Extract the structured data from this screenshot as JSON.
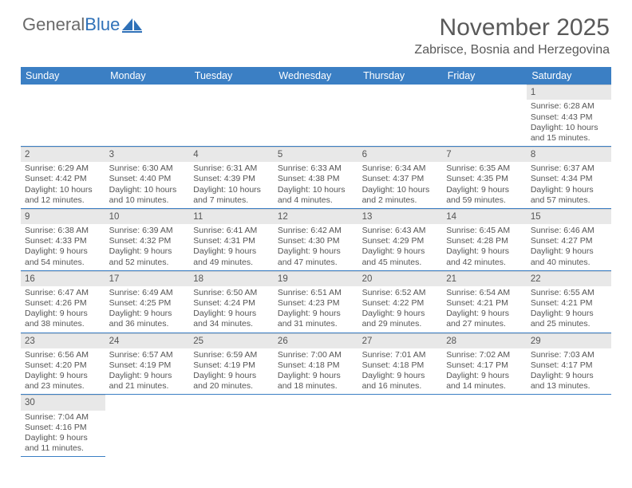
{
  "logo": {
    "part1": "General",
    "part2": "Blue"
  },
  "title": "November 2025",
  "location": "Zabrisce, Bosnia and Herzegovina",
  "colors": {
    "header_bg": "#3b7fc4",
    "header_text": "#ffffff",
    "daynum_bg": "#e8e8e8",
    "border": "#3b7fc4",
    "text": "#555555",
    "logo_gray": "#6a6a6a",
    "logo_blue": "#2f71b8"
  },
  "day_headers": [
    "Sunday",
    "Monday",
    "Tuesday",
    "Wednesday",
    "Thursday",
    "Friday",
    "Saturday"
  ],
  "weeks": [
    [
      null,
      null,
      null,
      null,
      null,
      null,
      {
        "n": "1",
        "sr": "6:28 AM",
        "ss": "4:43 PM",
        "dl": "10 hours and 15 minutes."
      }
    ],
    [
      {
        "n": "2",
        "sr": "6:29 AM",
        "ss": "4:42 PM",
        "dl": "10 hours and 12 minutes."
      },
      {
        "n": "3",
        "sr": "6:30 AM",
        "ss": "4:40 PM",
        "dl": "10 hours and 10 minutes."
      },
      {
        "n": "4",
        "sr": "6:31 AM",
        "ss": "4:39 PM",
        "dl": "10 hours and 7 minutes."
      },
      {
        "n": "5",
        "sr": "6:33 AM",
        "ss": "4:38 PM",
        "dl": "10 hours and 4 minutes."
      },
      {
        "n": "6",
        "sr": "6:34 AM",
        "ss": "4:37 PM",
        "dl": "10 hours and 2 minutes."
      },
      {
        "n": "7",
        "sr": "6:35 AM",
        "ss": "4:35 PM",
        "dl": "9 hours and 59 minutes."
      },
      {
        "n": "8",
        "sr": "6:37 AM",
        "ss": "4:34 PM",
        "dl": "9 hours and 57 minutes."
      }
    ],
    [
      {
        "n": "9",
        "sr": "6:38 AM",
        "ss": "4:33 PM",
        "dl": "9 hours and 54 minutes."
      },
      {
        "n": "10",
        "sr": "6:39 AM",
        "ss": "4:32 PM",
        "dl": "9 hours and 52 minutes."
      },
      {
        "n": "11",
        "sr": "6:41 AM",
        "ss": "4:31 PM",
        "dl": "9 hours and 49 minutes."
      },
      {
        "n": "12",
        "sr": "6:42 AM",
        "ss": "4:30 PM",
        "dl": "9 hours and 47 minutes."
      },
      {
        "n": "13",
        "sr": "6:43 AM",
        "ss": "4:29 PM",
        "dl": "9 hours and 45 minutes."
      },
      {
        "n": "14",
        "sr": "6:45 AM",
        "ss": "4:28 PM",
        "dl": "9 hours and 42 minutes."
      },
      {
        "n": "15",
        "sr": "6:46 AM",
        "ss": "4:27 PM",
        "dl": "9 hours and 40 minutes."
      }
    ],
    [
      {
        "n": "16",
        "sr": "6:47 AM",
        "ss": "4:26 PM",
        "dl": "9 hours and 38 minutes."
      },
      {
        "n": "17",
        "sr": "6:49 AM",
        "ss": "4:25 PM",
        "dl": "9 hours and 36 minutes."
      },
      {
        "n": "18",
        "sr": "6:50 AM",
        "ss": "4:24 PM",
        "dl": "9 hours and 34 minutes."
      },
      {
        "n": "19",
        "sr": "6:51 AM",
        "ss": "4:23 PM",
        "dl": "9 hours and 31 minutes."
      },
      {
        "n": "20",
        "sr": "6:52 AM",
        "ss": "4:22 PM",
        "dl": "9 hours and 29 minutes."
      },
      {
        "n": "21",
        "sr": "6:54 AM",
        "ss": "4:21 PM",
        "dl": "9 hours and 27 minutes."
      },
      {
        "n": "22",
        "sr": "6:55 AM",
        "ss": "4:21 PM",
        "dl": "9 hours and 25 minutes."
      }
    ],
    [
      {
        "n": "23",
        "sr": "6:56 AM",
        "ss": "4:20 PM",
        "dl": "9 hours and 23 minutes."
      },
      {
        "n": "24",
        "sr": "6:57 AM",
        "ss": "4:19 PM",
        "dl": "9 hours and 21 minutes."
      },
      {
        "n": "25",
        "sr": "6:59 AM",
        "ss": "4:19 PM",
        "dl": "9 hours and 20 minutes."
      },
      {
        "n": "26",
        "sr": "7:00 AM",
        "ss": "4:18 PM",
        "dl": "9 hours and 18 minutes."
      },
      {
        "n": "27",
        "sr": "7:01 AM",
        "ss": "4:18 PM",
        "dl": "9 hours and 16 minutes."
      },
      {
        "n": "28",
        "sr": "7:02 AM",
        "ss": "4:17 PM",
        "dl": "9 hours and 14 minutes."
      },
      {
        "n": "29",
        "sr": "7:03 AM",
        "ss": "4:17 PM",
        "dl": "9 hours and 13 minutes."
      }
    ],
    [
      {
        "n": "30",
        "sr": "7:04 AM",
        "ss": "4:16 PM",
        "dl": "9 hours and 11 minutes."
      },
      null,
      null,
      null,
      null,
      null,
      null
    ]
  ],
  "labels": {
    "sunrise": "Sunrise: ",
    "sunset": "Sunset: ",
    "daylight": "Daylight: "
  }
}
